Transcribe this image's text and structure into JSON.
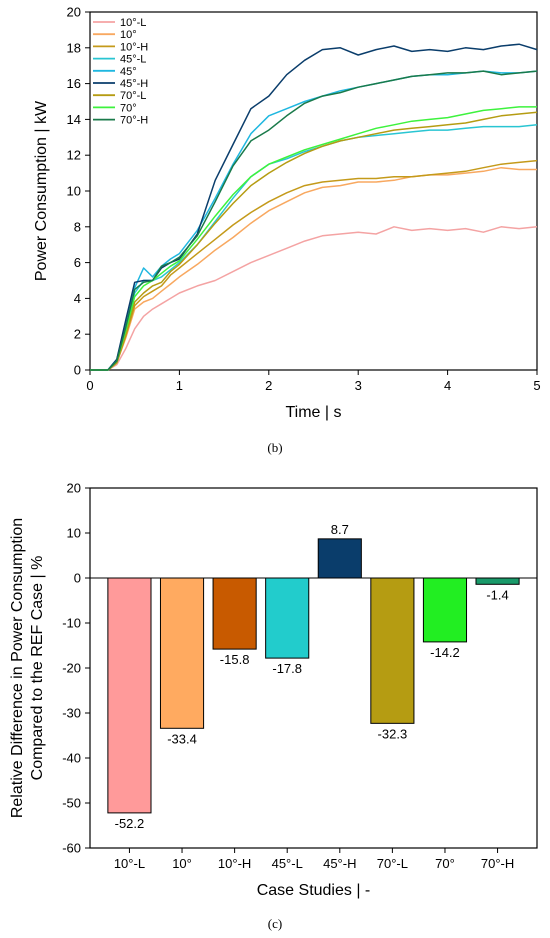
{
  "charts": {
    "line": {
      "caption": "(b)",
      "chart_data": {
        "type": "line",
        "xlabel": "Time | s",
        "ylabel": "Power Consumption | kW",
        "xlim": [
          0,
          5
        ],
        "ylim": [
          0,
          20
        ],
        "xticks": [
          0,
          1,
          2,
          3,
          4,
          5
        ],
        "yticks": [
          0,
          2,
          4,
          6,
          8,
          10,
          12,
          14,
          16,
          18,
          20
        ],
        "grid": false,
        "legend_position": "top-left",
        "series": [
          {
            "name": "10°-L",
            "color": "#f4a3a3",
            "x": [
              0,
              0.2,
              0.3,
              0.4,
              0.5,
              0.6,
              0.7,
              0.8,
              0.9,
              1.0,
              1.2,
              1.4,
              1.6,
              1.8,
              2.0,
              2.2,
              2.4,
              2.6,
              2.8,
              3.0,
              3.2,
              3.4,
              3.6,
              3.8,
              4.0,
              4.2,
              4.4,
              4.6,
              4.8,
              5.0
            ],
            "y": [
              0,
              0,
              0.3,
              1.2,
              2.3,
              3.0,
              3.4,
              3.7,
              4.0,
              4.3,
              4.7,
              5.0,
              5.5,
              6.0,
              6.4,
              6.8,
              7.2,
              7.5,
              7.6,
              7.7,
              7.6,
              8.0,
              7.8,
              7.9,
              7.8,
              7.9,
              7.7,
              8.0,
              7.9,
              8.0
            ]
          },
          {
            "name": "10°",
            "color": "#f8a860",
            "x": [
              0,
              0.2,
              0.3,
              0.4,
              0.5,
              0.6,
              0.7,
              0.8,
              0.9,
              1.0,
              1.2,
              1.4,
              1.6,
              1.8,
              2.0,
              2.2,
              2.4,
              2.6,
              2.8,
              3.0,
              3.2,
              3.4,
              3.6,
              3.8,
              4.0,
              4.2,
              4.4,
              4.6,
              4.8,
              5.0
            ],
            "y": [
              0,
              0,
              0.4,
              1.8,
              3.4,
              3.8,
              4.0,
              4.4,
              4.8,
              5.2,
              5.9,
              6.7,
              7.4,
              8.2,
              8.9,
              9.4,
              9.9,
              10.2,
              10.3,
              10.5,
              10.5,
              10.6,
              10.8,
              10.9,
              10.9,
              11.0,
              11.1,
              11.3,
              11.2,
              11.2
            ]
          },
          {
            "name": "10°-H",
            "color": "#c49a1a",
            "x": [
              0,
              0.2,
              0.3,
              0.4,
              0.5,
              0.6,
              0.7,
              0.8,
              0.9,
              1.0,
              1.2,
              1.4,
              1.6,
              1.8,
              2.0,
              2.2,
              2.4,
              2.6,
              2.8,
              3.0,
              3.2,
              3.4,
              3.6,
              3.8,
              4.0,
              4.2,
              4.4,
              4.6,
              4.8,
              5.0
            ],
            "y": [
              0,
              0,
              0.4,
              1.9,
              3.6,
              4.1,
              4.4,
              4.7,
              5.3,
              5.7,
              6.5,
              7.3,
              8.1,
              8.8,
              9.4,
              9.9,
              10.3,
              10.5,
              10.6,
              10.7,
              10.7,
              10.8,
              10.8,
              10.9,
              11.0,
              11.1,
              11.3,
              11.5,
              11.6,
              11.7
            ]
          },
          {
            "name": "45°-L",
            "color": "#29c5d2",
            "x": [
              0,
              0.2,
              0.3,
              0.4,
              0.5,
              0.6,
              0.7,
              0.8,
              0.9,
              1.0,
              1.2,
              1.4,
              1.6,
              1.8,
              2.0,
              2.2,
              2.4,
              2.6,
              2.8,
              3.0,
              3.2,
              3.4,
              3.6,
              3.8,
              4.0,
              4.2,
              4.4,
              4.6,
              4.8,
              5.0
            ],
            "y": [
              0,
              0,
              0.5,
              2.3,
              4.3,
              5.0,
              5.0,
              5.2,
              5.6,
              6.0,
              7.0,
              8.3,
              9.6,
              10.8,
              11.5,
              11.8,
              12.2,
              12.5,
              12.8,
              13.0,
              13.1,
              13.2,
              13.3,
              13.4,
              13.4,
              13.5,
              13.6,
              13.6,
              13.6,
              13.7
            ]
          },
          {
            "name": "45°",
            "color": "#1fb7e0",
            "x": [
              0,
              0.2,
              0.3,
              0.4,
              0.5,
              0.6,
              0.7,
              0.8,
              0.9,
              1.0,
              1.2,
              1.4,
              1.6,
              1.8,
              2.0,
              2.2,
              2.4,
              2.6,
              2.8,
              3.0,
              3.2,
              3.4,
              3.6,
              3.8,
              4.0,
              4.2,
              4.4,
              4.6,
              4.8,
              5.0
            ],
            "y": [
              0,
              0,
              0.6,
              2.5,
              4.6,
              5.7,
              5.2,
              5.8,
              6.2,
              6.5,
              7.8,
              9.6,
              11.5,
              13.2,
              14.2,
              14.6,
              15.0,
              15.3,
              15.6,
              15.8,
              16.0,
              16.2,
              16.4,
              16.5,
              16.5,
              16.6,
              16.7,
              16.6,
              16.6,
              16.7
            ]
          },
          {
            "name": "45°-H",
            "color": "#0a3d6b",
            "x": [
              0,
              0.2,
              0.3,
              0.4,
              0.5,
              0.6,
              0.7,
              0.8,
              0.9,
              1.0,
              1.2,
              1.4,
              1.6,
              1.8,
              2.0,
              2.2,
              2.4,
              2.6,
              2.8,
              3.0,
              3.2,
              3.4,
              3.6,
              3.8,
              4.0,
              4.2,
              4.4,
              4.6,
              4.8,
              5.0
            ],
            "y": [
              0,
              0,
              0.6,
              2.8,
              4.9,
              5.0,
              5.0,
              5.7,
              6.0,
              6.2,
              7.6,
              10.6,
              12.6,
              14.6,
              15.3,
              16.5,
              17.3,
              17.9,
              18.0,
              17.6,
              17.9,
              18.1,
              17.8,
              17.9,
              17.8,
              18.0,
              17.9,
              18.1,
              18.2,
              17.9
            ]
          },
          {
            "name": "70°-L",
            "color": "#b59c12",
            "x": [
              0,
              0.2,
              0.3,
              0.4,
              0.5,
              0.6,
              0.7,
              0.8,
              0.9,
              1.0,
              1.2,
              1.4,
              1.6,
              1.8,
              2.0,
              2.2,
              2.4,
              2.6,
              2.8,
              3.0,
              3.2,
              3.4,
              3.6,
              3.8,
              4.0,
              4.2,
              4.4,
              4.6,
              4.8,
              5.0
            ],
            "y": [
              0,
              0,
              0.4,
              2.0,
              3.8,
              4.3,
              4.7,
              4.9,
              5.5,
              5.9,
              7.0,
              8.2,
              9.3,
              10.3,
              11.0,
              11.6,
              12.1,
              12.5,
              12.8,
              13.0,
              13.2,
              13.4,
              13.5,
              13.6,
              13.7,
              13.8,
              14.0,
              14.2,
              14.3,
              14.4
            ]
          },
          {
            "name": "70°",
            "color": "#3df23d",
            "x": [
              0,
              0.2,
              0.3,
              0.4,
              0.5,
              0.6,
              0.7,
              0.8,
              0.9,
              1.0,
              1.2,
              1.4,
              1.6,
              1.8,
              2.0,
              2.2,
              2.4,
              2.6,
              2.8,
              3.0,
              3.2,
              3.4,
              3.6,
              3.8,
              4.0,
              4.2,
              4.4,
              4.6,
              4.8,
              5.0
            ],
            "y": [
              0,
              0,
              0.5,
              2.2,
              4.1,
              4.7,
              5.0,
              5.4,
              5.8,
              6.1,
              7.3,
              8.6,
              9.8,
              10.8,
              11.5,
              11.9,
              12.3,
              12.6,
              12.9,
              13.2,
              13.5,
              13.7,
              13.9,
              14.0,
              14.1,
              14.3,
              14.5,
              14.6,
              14.7,
              14.7
            ]
          },
          {
            "name": "70°-H",
            "color": "#1a7a4a",
            "x": [
              0,
              0.2,
              0.3,
              0.4,
              0.5,
              0.6,
              0.7,
              0.8,
              0.9,
              1.0,
              1.2,
              1.4,
              1.6,
              1.8,
              2.0,
              2.2,
              2.4,
              2.6,
              2.8,
              3.0,
              3.2,
              3.4,
              3.6,
              3.8,
              4.0,
              4.2,
              4.4,
              4.6,
              4.8,
              5.0
            ],
            "y": [
              0,
              0,
              0.5,
              2.4,
              4.5,
              4.9,
              5.0,
              5.8,
              6.0,
              6.3,
              7.5,
              9.4,
              11.4,
              12.8,
              13.4,
              14.2,
              14.9,
              15.3,
              15.5,
              15.8,
              16.0,
              16.2,
              16.4,
              16.5,
              16.6,
              16.6,
              16.7,
              16.5,
              16.6,
              16.7
            ]
          }
        ]
      }
    },
    "bar": {
      "caption": "(c)",
      "chart_data": {
        "type": "bar",
        "xlabel": "Case Studies | -",
        "ylabel": "Relative Difference in Power Consumption\nCompared to the REF Case | %",
        "ylim": [
          -60,
          20
        ],
        "yticks": [
          -60,
          -50,
          -40,
          -30,
          -20,
          -10,
          0,
          10,
          20
        ],
        "grid": false,
        "categories": [
          "10°-L",
          "10°",
          "10°-H",
          "45°-L",
          "45°-H",
          "70°-L",
          "70°",
          "70°-H"
        ],
        "values": [
          -52.2,
          -33.4,
          -15.8,
          -17.8,
          8.7,
          -32.3,
          -14.2,
          -1.4
        ],
        "data_labels": [
          "-52.2",
          "-33.4",
          "-15.8",
          "-17.8",
          "8.7",
          "-32.3",
          "-14.2",
          "-1.4"
        ],
        "colors": [
          "#ff9a9a",
          "#ffaa60",
          "#c85a00",
          "#22cccc",
          "#0a3d6b",
          "#b59c12",
          "#22ee22",
          "#1a9a6a"
        ]
      }
    }
  }
}
